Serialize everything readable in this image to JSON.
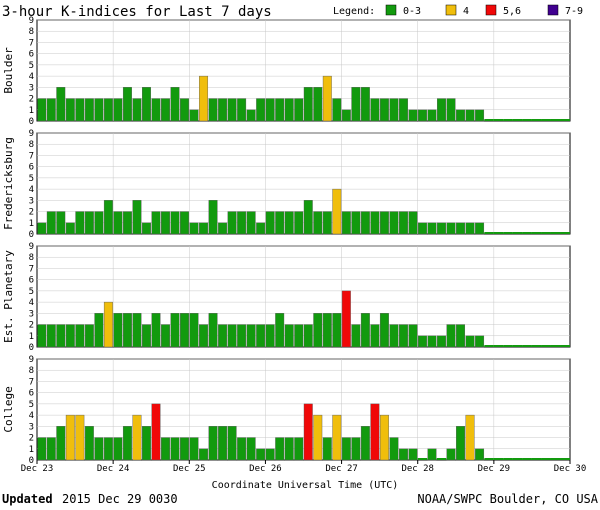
{
  "title": "3-hour K-indices for Last 7 days",
  "legend": {
    "label": "Legend:",
    "items": [
      {
        "label": "0-3",
        "color": "#129a0e"
      },
      {
        "label": "4",
        "color": "#f0be0c"
      },
      {
        "label": "5,6",
        "color": "#f00808"
      },
      {
        "label": "7-9",
        "color": "#400090"
      }
    ]
  },
  "xlabel": "Coordinate Universal Time (UTC)",
  "updated_label": "Updated",
  "updated_value": "2015 Dec 29 0030",
  "credit": "NOAA/SWPC Boulder, CO USA",
  "chart_data": {
    "type": "bar",
    "x_tick_labels": [
      "Dec 23",
      "Dec 24",
      "Dec 25",
      "Dec 26",
      "Dec 27",
      "Dec 28",
      "Dec 29",
      "Dec 30"
    ],
    "y_ticks": [
      0,
      1,
      2,
      3,
      4,
      5,
      6,
      7,
      8,
      9
    ],
    "ylim": [
      0,
      9
    ],
    "slots": 56,
    "panels": [
      {
        "name": "Boulder",
        "values": [
          2,
          2,
          3,
          2,
          2,
          2,
          2,
          2,
          2,
          3,
          2,
          3,
          2,
          2,
          3,
          2,
          1,
          4,
          2,
          2,
          2,
          2,
          1,
          2,
          2,
          2,
          2,
          2,
          3,
          3,
          4,
          2,
          1,
          3,
          3,
          2,
          2,
          2,
          2,
          1,
          1,
          1,
          2,
          2,
          1,
          1,
          1,
          0,
          0,
          0,
          0,
          0,
          0,
          0,
          0,
          0
        ]
      },
      {
        "name": "Fredericksburg",
        "values": [
          1,
          2,
          2,
          1,
          2,
          2,
          2,
          3,
          2,
          2,
          3,
          1,
          2,
          2,
          2,
          2,
          1,
          1,
          3,
          1,
          2,
          2,
          2,
          1,
          2,
          2,
          2,
          2,
          3,
          2,
          2,
          4,
          2,
          2,
          2,
          2,
          2,
          2,
          2,
          2,
          1,
          1,
          1,
          1,
          1,
          1,
          1,
          0,
          0,
          0,
          0,
          0,
          0,
          0,
          0,
          0
        ]
      },
      {
        "name": "Est. Planetary",
        "values": [
          2,
          2,
          2,
          2,
          2,
          2,
          3,
          4,
          3,
          3,
          3,
          2,
          3,
          2,
          3,
          3,
          3,
          2,
          3,
          2,
          2,
          2,
          2,
          2,
          2,
          3,
          2,
          2,
          2,
          3,
          3,
          3,
          5,
          2,
          3,
          2,
          3,
          2,
          2,
          2,
          1,
          1,
          1,
          2,
          2,
          1,
          1,
          0,
          0,
          0,
          0,
          0,
          0,
          0,
          0,
          0
        ]
      },
      {
        "name": "College",
        "values": [
          2,
          2,
          3,
          4,
          4,
          3,
          2,
          2,
          2,
          3,
          4,
          3,
          5,
          2,
          2,
          2,
          2,
          1,
          3,
          3,
          3,
          2,
          2,
          1,
          1,
          2,
          2,
          2,
          5,
          4,
          2,
          4,
          2,
          2,
          3,
          5,
          4,
          2,
          1,
          1,
          0,
          1,
          0,
          1,
          3,
          4,
          1,
          0,
          0,
          0,
          0,
          0,
          0,
          0,
          0,
          0
        ]
      }
    ]
  }
}
